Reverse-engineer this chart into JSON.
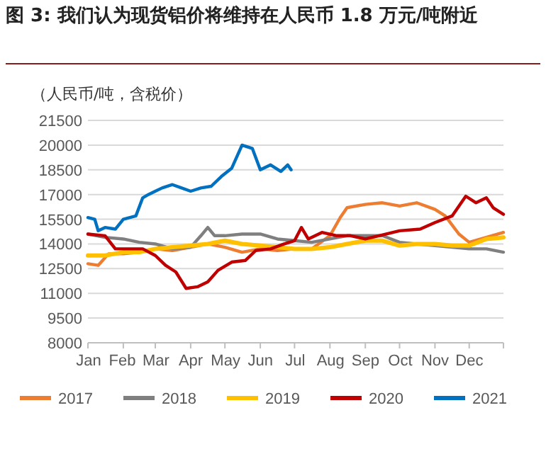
{
  "chart_data": {
    "type": "line",
    "title": "图 3: 我们认为现货铝价将维持在人民币 1.8 万元/吨附近",
    "ylabel": "（人民币/吨，含税价）",
    "xlim": [
      "--01-01",
      "--12-31"
    ],
    "xticks": [
      {
        "value": "--01-01",
        "label": "Jan"
      },
      {
        "value": "--02-01",
        "label": "Feb"
      },
      {
        "value": "--03-01",
        "label": "Mar"
      },
      {
        "value": "--04-01",
        "label": "Apr"
      },
      {
        "value": "--05-01",
        "label": "May"
      },
      {
        "value": "--06-01",
        "label": "Jun"
      },
      {
        "value": "--07-01",
        "label": "Jul"
      },
      {
        "value": "--08-01",
        "label": "Aug"
      },
      {
        "value": "--09-01",
        "label": "Sep"
      },
      {
        "value": "--10-01",
        "label": "Oct"
      },
      {
        "value": "--11-01",
        "label": "Nov"
      },
      {
        "value": "--12-01",
        "label": "Dec"
      },
      {
        "value": "--12-31",
        "label": null
      }
    ],
    "ylim": [
      8000,
      21500
    ],
    "yticks": [
      8000,
      9500,
      11000,
      12500,
      14000,
      15500,
      17000,
      18500,
      20000,
      21500
    ],
    "grid": "y",
    "legend": "bottom",
    "series": [
      {
        "name": "2017",
        "color": "#ed7d31",
        "x": [
          "--01-01",
          "--01-10",
          "--01-19",
          "--02-01",
          "--02-15",
          "--03-01",
          "--03-16",
          "--04-01",
          "--04-16",
          "--05-01",
          "--05-16",
          "--06-01",
          "--06-16",
          "--07-01",
          "--07-16",
          "--08-01",
          "--08-10",
          "--08-16",
          "--09-01",
          "--09-16",
          "--10-01",
          "--10-16",
          "--11-01",
          "--11-10",
          "--11-22",
          "--12-01",
          "--12-16",
          "--12-31"
        ],
        "values": [
          12800,
          12700,
          13400,
          13400,
          13500,
          13700,
          13600,
          13800,
          14000,
          13800,
          13500,
          13700,
          13600,
          13700,
          13700,
          14500,
          15600,
          16200,
          16400,
          16500,
          16300,
          16500,
          16100,
          15700,
          14600,
          14100,
          14400,
          14700
        ]
      },
      {
        "name": "2018",
        "color": "#7f7f7f",
        "x": [
          "--01-01",
          "--01-16",
          "--02-01",
          "--02-15",
          "--03-01",
          "--03-16",
          "--04-01",
          "--04-10",
          "--04-16",
          "--04-22",
          "--05-01",
          "--05-16",
          "--06-01",
          "--06-16",
          "--07-01",
          "--07-16",
          "--08-01",
          "--08-16",
          "--09-01",
          "--09-16",
          "--10-01",
          "--10-16",
          "--11-01",
          "--11-16",
          "--12-01",
          "--12-16",
          "--12-31"
        ],
        "values": [
          14600,
          14400,
          14300,
          14100,
          14000,
          13700,
          13800,
          14500,
          15000,
          14500,
          14500,
          14600,
          14600,
          14300,
          14200,
          14100,
          14300,
          14500,
          14500,
          14500,
          14100,
          14000,
          13900,
          13800,
          13700,
          13700,
          13500
        ]
      },
      {
        "name": "2019",
        "color": "#ffc000",
        "x": [
          "--01-01",
          "--01-16",
          "--02-01",
          "--02-15",
          "--03-01",
          "--03-16",
          "--04-01",
          "--04-16",
          "--05-01",
          "--05-16",
          "--06-01",
          "--06-16",
          "--07-01",
          "--07-16",
          "--08-01",
          "--08-16",
          "--09-01",
          "--09-16",
          "--10-01",
          "--10-16",
          "--11-01",
          "--11-16",
          "--12-01",
          "--12-16",
          "--12-31"
        ],
        "values": [
          13300,
          13300,
          13500,
          13500,
          13700,
          13800,
          13900,
          14000,
          14200,
          14000,
          13900,
          13800,
          13700,
          13700,
          13800,
          14000,
          14200,
          14200,
          13900,
          14000,
          14000,
          13900,
          13900,
          14300,
          14400
        ]
      },
      {
        "name": "2020",
        "color": "#c00000",
        "x": [
          "--01-01",
          "--01-16",
          "--01-25",
          "--02-07",
          "--02-18",
          "--03-01",
          "--03-10",
          "--03-19",
          "--03-28",
          "--04-07",
          "--04-16",
          "--04-25",
          "--05-07",
          "--05-19",
          "--05-28",
          "--06-10",
          "--06-22",
          "--07-01",
          "--07-07",
          "--07-13",
          "--07-25",
          "--08-07",
          "--08-19",
          "--09-01",
          "--09-13",
          "--10-01",
          "--10-19",
          "--11-01",
          "--11-16",
          "--11-28",
          "--12-07",
          "--12-16",
          "--12-22",
          "--12-31"
        ],
        "values": [
          14600,
          14500,
          13700,
          13700,
          13700,
          13300,
          12700,
          12300,
          11300,
          11400,
          11700,
          12400,
          12900,
          13000,
          13600,
          13700,
          14000,
          14200,
          15000,
          14300,
          14700,
          14500,
          14500,
          14300,
          14500,
          14800,
          14900,
          15300,
          15700,
          16900,
          16500,
          16800,
          16200,
          15800
        ]
      },
      {
        "name": "2021",
        "color": "#0070c0",
        "x": [
          "--01-01",
          "--01-07",
          "--01-10",
          "--01-16",
          "--01-25",
          "--02-01",
          "--02-12",
          "--02-18",
          "--02-23",
          "--03-01",
          "--03-07",
          "--03-16",
          "--04-01",
          "--04-10",
          "--04-19",
          "--04-28",
          "--05-07",
          "--05-16",
          "--05-25",
          "--06-01",
          "--06-10",
          "--06-19",
          "--06-25",
          "--06-28"
        ],
        "values": [
          15600,
          15500,
          14800,
          15000,
          14900,
          15500,
          15700,
          16800,
          17000,
          17200,
          17400,
          17600,
          17200,
          17400,
          17500,
          18100,
          18600,
          20000,
          19800,
          18500,
          18800,
          18400,
          18800,
          18500
        ]
      }
    ]
  }
}
